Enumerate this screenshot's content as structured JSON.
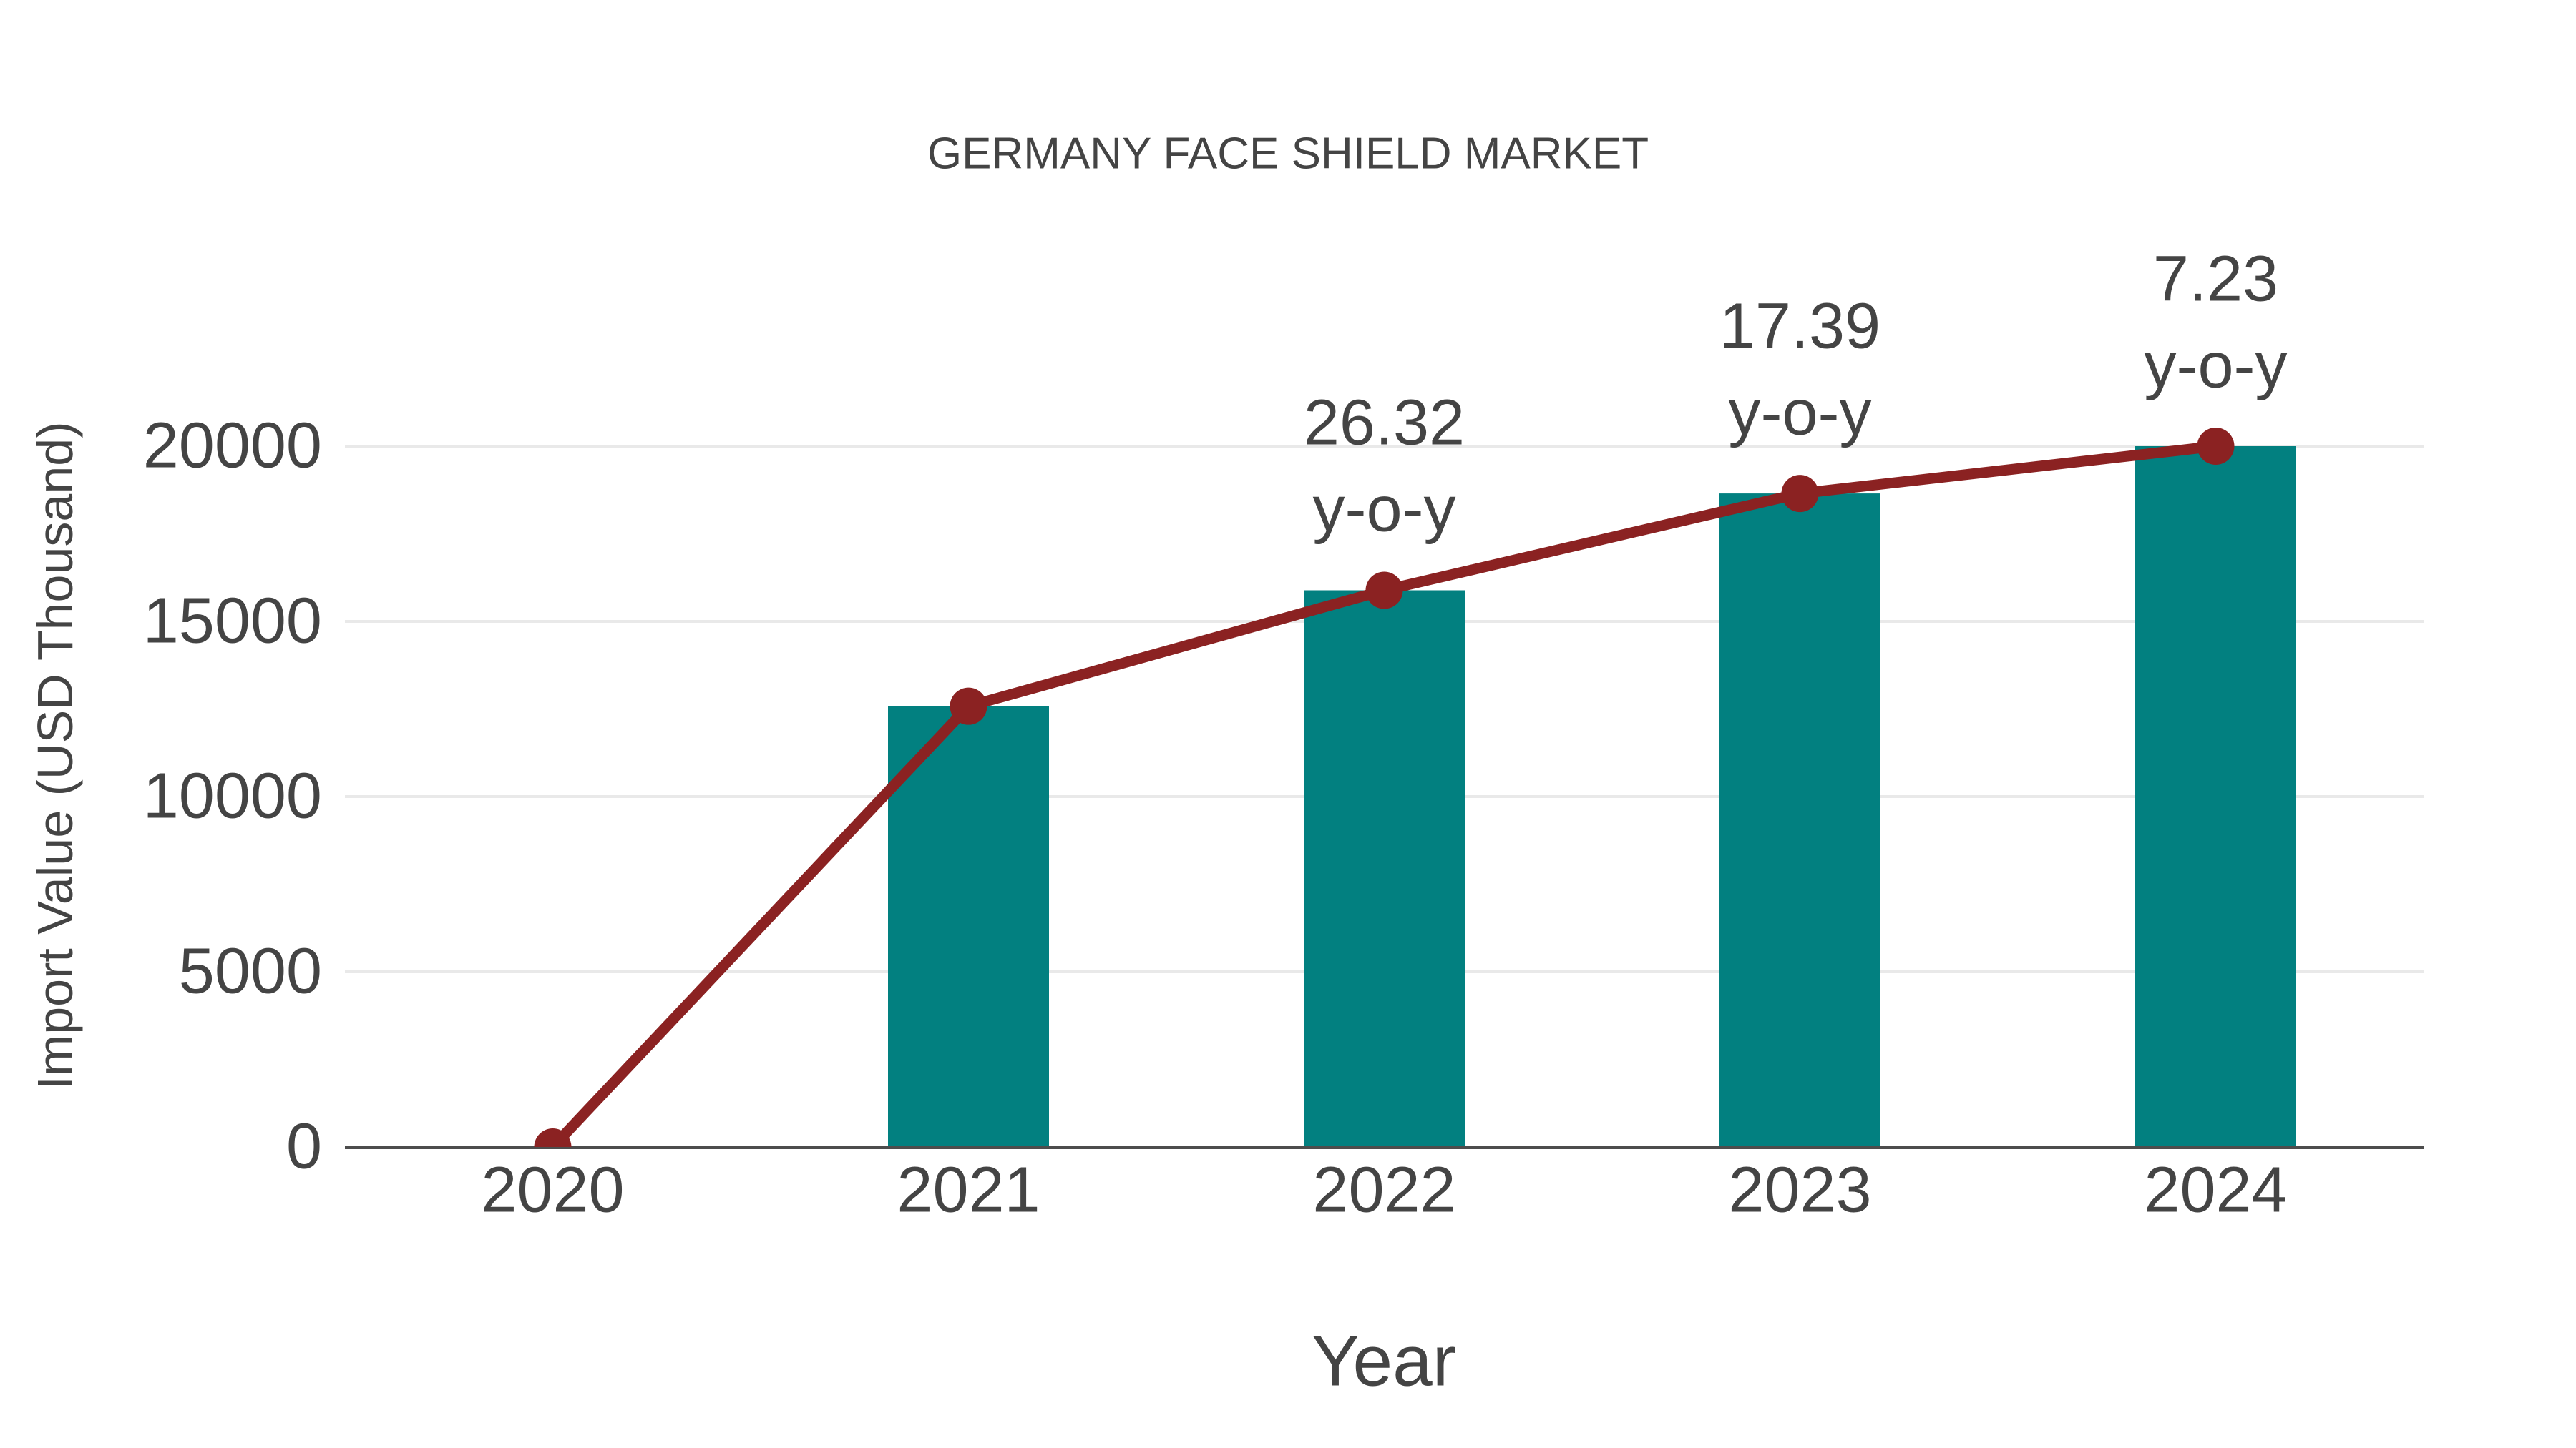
{
  "chart_data": {
    "type": "bar",
    "subtype": "bar-with-line-overlay",
    "title": "GERMANY FACE SHIELD MARKET",
    "xlabel": "Year",
    "ylabel": "Import Value (USD Thousand)",
    "categories": [
      "2020",
      "2021",
      "2022",
      "2023",
      "2024"
    ],
    "series": [
      {
        "name": "Import Value bars",
        "type": "bar",
        "values": [
          0,
          12578,
          15888,
          18651,
          20000
        ]
      },
      {
        "name": "Import Value trend line",
        "type": "line",
        "values": [
          0,
          12578,
          15888,
          18651,
          20000
        ]
      }
    ],
    "annotations": [
      {
        "category": "2022",
        "value": "26.32",
        "suffix": "y-o-y"
      },
      {
        "category": "2023",
        "value": "17.39",
        "suffix": "y-o-y"
      },
      {
        "category": "2024",
        "value": "7.23",
        "suffix": "y-o-y"
      }
    ],
    "ytick_labels": [
      "0",
      "5000",
      "10000",
      "15000",
      "20000"
    ],
    "ytick_values": [
      0,
      5000,
      10000,
      15000,
      20000
    ],
    "ylim": [
      0,
      20000
    ],
    "grid": true,
    "legend": false,
    "colors": {
      "bar": "#028080",
      "line": "#8B2222",
      "marker": "#8B2222",
      "text": "#444444",
      "grid": "#E9E9E9",
      "axis": "#4D4D4D",
      "background": "#FFFFFF"
    }
  }
}
